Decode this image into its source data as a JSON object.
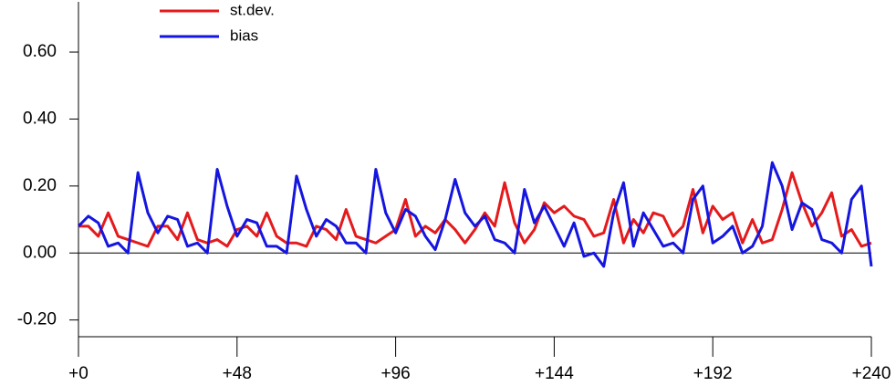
{
  "chart_data": {
    "type": "line",
    "x": [
      0,
      3,
      6,
      9,
      12,
      15,
      18,
      21,
      24,
      27,
      30,
      33,
      36,
      39,
      42,
      45,
      48,
      51,
      54,
      57,
      60,
      63,
      66,
      69,
      72,
      75,
      78,
      81,
      84,
      87,
      90,
      93,
      96,
      99,
      102,
      105,
      108,
      111,
      114,
      117,
      120,
      123,
      126,
      129,
      132,
      135,
      138,
      141,
      144,
      147,
      150,
      153,
      156,
      159,
      162,
      165,
      168,
      171,
      174,
      177,
      180,
      183,
      186,
      189,
      192,
      195,
      198,
      201,
      204,
      207,
      210,
      213,
      216,
      219,
      222,
      225,
      228,
      231,
      234,
      237,
      240
    ],
    "series": [
      {
        "name": "st.dev.",
        "color": "#e41a1c",
        "values": [
          0.08,
          0.08,
          0.05,
          0.12,
          0.05,
          0.04,
          0.03,
          0.02,
          0.08,
          0.08,
          0.04,
          0.12,
          0.04,
          0.03,
          0.04,
          0.02,
          0.07,
          0.08,
          0.05,
          0.12,
          0.05,
          0.03,
          0.03,
          0.02,
          0.08,
          0.07,
          0.04,
          0.13,
          0.05,
          0.04,
          0.03,
          0.05,
          0.07,
          0.16,
          0.05,
          0.08,
          0.06,
          0.1,
          0.07,
          0.03,
          0.07,
          0.12,
          0.08,
          0.21,
          0.09,
          0.03,
          0.07,
          0.15,
          0.12,
          0.14,
          0.11,
          0.1,
          0.05,
          0.06,
          0.16,
          0.03,
          0.1,
          0.06,
          0.12,
          0.11,
          0.05,
          0.08,
          0.19,
          0.06,
          0.14,
          0.1,
          0.12,
          0.03,
          0.1,
          0.03,
          0.04,
          0.13,
          0.24,
          0.15,
          0.08,
          0.12,
          0.18,
          0.05,
          0.07,
          0.02,
          0.03
        ]
      },
      {
        "name": "bias",
        "color": "#1515e0",
        "values": [
          0.08,
          0.11,
          0.09,
          0.02,
          0.03,
          0.0,
          0.24,
          0.12,
          0.06,
          0.11,
          0.1,
          0.02,
          0.03,
          0.0,
          0.25,
          0.14,
          0.05,
          0.1,
          0.09,
          0.02,
          0.02,
          0.0,
          0.23,
          0.13,
          0.05,
          0.1,
          0.08,
          0.03,
          0.03,
          0.0,
          0.25,
          0.12,
          0.06,
          0.13,
          0.11,
          0.05,
          0.01,
          0.1,
          0.22,
          0.12,
          0.08,
          0.11,
          0.04,
          0.03,
          0.0,
          0.19,
          0.09,
          0.14,
          0.08,
          0.02,
          0.09,
          -0.01,
          0.0,
          -0.04,
          0.12,
          0.21,
          0.02,
          0.12,
          0.07,
          0.02,
          0.03,
          0.0,
          0.16,
          0.2,
          0.03,
          0.05,
          0.08,
          0.0,
          0.02,
          0.08,
          0.27,
          0.2,
          0.07,
          0.15,
          0.13,
          0.04,
          0.03,
          0.0,
          0.16,
          0.2,
          -0.04
        ]
      }
    ],
    "xlim": [
      0,
      240
    ],
    "xticks": [
      {
        "value": 0,
        "label": "+0"
      },
      {
        "value": 48,
        "label": "+48"
      },
      {
        "value": 96,
        "label": "+96"
      },
      {
        "value": 144,
        "label": "+144"
      },
      {
        "value": 192,
        "label": "+192"
      },
      {
        "value": 240,
        "label": "+240"
      }
    ],
    "ylim": [
      -0.25,
      0.75
    ],
    "yticks": [
      {
        "value": -0.2,
        "label": "-0.20"
      },
      {
        "value": 0,
        "label": "0.00"
      },
      {
        "value": 0.2,
        "label": "0.20"
      },
      {
        "value": 0.4,
        "label": "0.40"
      },
      {
        "value": 0.6,
        "label": "0.60"
      }
    ],
    "legend": "top-left"
  }
}
